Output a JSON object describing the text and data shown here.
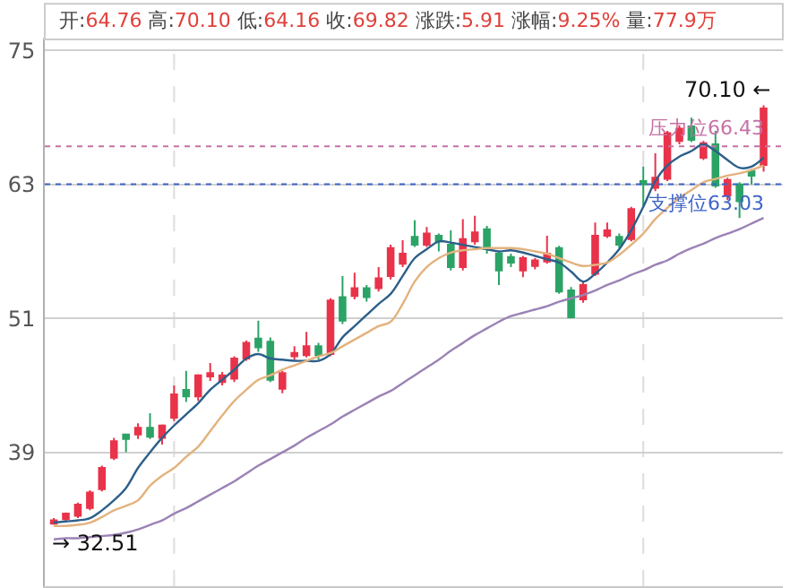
{
  "chart_data": {
    "type": "candlestick",
    "categories": [
      null,
      null,
      null,
      null,
      null,
      null,
      null,
      null,
      null,
      null,
      null,
      null,
      null,
      null,
      null,
      null,
      null,
      null,
      null,
      null,
      null,
      null,
      null,
      null,
      null,
      null,
      null,
      null,
      null,
      null,
      null,
      null,
      null,
      null,
      null,
      null,
      null,
      null,
      null,
      null,
      null,
      null,
      null,
      null,
      null,
      null,
      null,
      null,
      null,
      null,
      null,
      null,
      null,
      null,
      null,
      null,
      null,
      null,
      null,
      null
    ],
    "ohlc": [
      [
        32.6,
        33.1,
        32.51,
        32.9
      ],
      [
        33.0,
        33.6,
        32.8,
        33.5
      ],
      [
        33.3,
        34.5,
        33.1,
        34.3
      ],
      [
        34.0,
        35.6,
        33.8,
        35.4
      ],
      [
        35.7,
        37.8,
        35.5,
        37.6
      ],
      [
        38.5,
        40.3,
        38.3,
        40.0
      ],
      [
        40.6,
        40.6,
        39.0,
        40.2
      ],
      [
        40.6,
        41.6,
        40.2,
        41.2
      ],
      [
        41.2,
        42.5,
        40.2,
        40.4
      ],
      [
        40.3,
        41.5,
        39.7,
        41.4
      ],
      [
        42.1,
        45.0,
        41.8,
        44.2
      ],
      [
        44.6,
        46.3,
        43.5,
        44.0
      ],
      [
        44.0,
        46.0,
        43.6,
        45.9
      ],
      [
        45.8,
        47.0,
        45.4,
        46.1
      ],
      [
        45.3,
        46.2,
        45.0,
        45.9
      ],
      [
        45.6,
        47.6,
        45.3,
        47.4
      ],
      [
        47.4,
        49.0,
        47.2,
        48.8
      ],
      [
        49.2,
        50.8,
        48.0,
        48.4
      ],
      [
        48.9,
        49.3,
        45.3,
        45.5
      ],
      [
        44.7,
        46.3,
        44.3,
        46.1
      ],
      [
        47.6,
        48.5,
        47.3,
        47.9
      ],
      [
        47.7,
        49.8,
        47.5,
        48.5
      ],
      [
        48.5,
        48.8,
        47.3,
        47.7
      ],
      [
        47.8,
        52.8,
        47.6,
        52.6
      ],
      [
        52.9,
        54.8,
        50.5,
        50.8
      ],
      [
        53.0,
        55.1,
        52.7,
        53.7
      ],
      [
        53.7,
        54.0,
        52.5,
        52.9
      ],
      [
        53.7,
        55.6,
        53.4,
        54.6
      ],
      [
        54.8,
        57.6,
        54.5,
        57.3
      ],
      [
        55.9,
        58.0,
        55.6,
        56.8
      ],
      [
        58.3,
        59.8,
        57.4,
        57.6
      ],
      [
        57.6,
        59.2,
        57.4,
        58.6
      ],
      [
        58.4,
        58.6,
        57.0,
        57.9
      ],
      [
        57.6,
        58.9,
        55.3,
        55.6
      ],
      [
        55.6,
        59.9,
        55.3,
        58.1
      ],
      [
        57.9,
        60.2,
        57.6,
        58.7
      ],
      [
        59.0,
        59.3,
        56.8,
        57.2
      ],
      [
        56.8,
        57.0,
        54.0,
        55.3
      ],
      [
        56.5,
        56.8,
        55.6,
        56.0
      ],
      [
        55.3,
        56.6,
        54.7,
        56.4
      ],
      [
        55.7,
        56.4,
        55.4,
        56.2
      ],
      [
        56.1,
        58.4,
        55.9,
        56.8
      ],
      [
        57.3,
        57.5,
        53.2,
        53.4
      ],
      [
        53.5,
        53.8,
        51.0,
        51.1
      ],
      [
        52.7,
        54.3,
        52.4,
        54.0
      ],
      [
        55.0,
        59.6,
        54.8,
        58.4
      ],
      [
        58.4,
        59.6,
        58.2,
        58.9
      ],
      [
        58.3,
        58.6,
        57.3,
        57.6
      ],
      [
        58.1,
        61.0,
        57.9,
        60.8
      ],
      [
        63.3,
        64.6,
        61.0,
        63.0
      ],
      [
        62.7,
        65.8,
        62.4,
        63.6
      ],
      [
        63.5,
        67.8,
        63.3,
        67.6
      ],
      [
        66.9,
        68.3,
        66.6,
        68.0
      ],
      [
        68.2,
        69.0,
        66.8,
        67.0
      ],
      [
        65.4,
        66.9,
        65.2,
        66.7
      ],
      [
        66.6,
        67.8,
        62.7,
        62.9
      ],
      [
        62.0,
        63.6,
        61.6,
        63.4
      ],
      [
        63.0,
        63.2,
        60.0,
        61.5
      ],
      [
        64.2,
        64.4,
        63.0,
        63.8
      ],
      [
        64.76,
        70.1,
        64.16,
        69.82
      ]
    ],
    "colors": [
      "#e8334a",
      "#e8334a",
      "#e8334a",
      "#e8334a",
      "#e8334a",
      "#e8334a",
      "#2ba366",
      "#e8334a",
      "#2ba366",
      "#e8334a",
      "#e8334a",
      "#2ba366",
      "#e8334a",
      "#e8334a",
      "#e8334a",
      "#e8334a",
      "#e8334a",
      "#2ba366",
      "#2ba366",
      "#e8334a",
      "#e8334a",
      "#e8334a",
      "#2ba366",
      "#e8334a",
      "#2ba366",
      "#e8334a",
      "#2ba366",
      "#e8334a",
      "#e8334a",
      "#e8334a",
      "#2ba366",
      "#e8334a",
      "#2ba366",
      "#2ba366",
      "#e8334a",
      "#e8334a",
      "#2ba366",
      "#2ba366",
      "#2ba366",
      "#e8334a",
      "#e8334a",
      "#e8334a",
      "#2ba366",
      "#2ba366",
      "#e8334a",
      "#e8334a",
      "#e8334a",
      "#2ba366",
      "#e8334a",
      "#2ba366",
      "#e8334a",
      "#e8334a",
      "#e8334a",
      "#2ba366",
      "#e8334a",
      "#2ba366",
      "#e8334a",
      "#2ba366",
      "#2ba366",
      "#e8334a"
    ],
    "series": [
      {
        "type": "line",
        "color": "#2c5f8a",
        "values": [
          32.7,
          32.8,
          32.9,
          33.1,
          33.8,
          34.7,
          35.8,
          37.6,
          39.0,
          40.3,
          41.4,
          42.4,
          43.4,
          44.6,
          45.5,
          46.4,
          47.4,
          47.8,
          47.4,
          47.3,
          47.2,
          47.2,
          47.2,
          47.8,
          49.3,
          50.3,
          51.3,
          52.3,
          53.2,
          54.8,
          56.4,
          57.2,
          57.9,
          57.8,
          57.6,
          57.4,
          57.2,
          57.0,
          57.1,
          56.9,
          56.6,
          56.3,
          56.0,
          55.2,
          54.3,
          55.0,
          56.0,
          57.2,
          58.9,
          61.0,
          63.3,
          64.7,
          65.5,
          66.0,
          66.6,
          66.0,
          65.2,
          64.5,
          64.6,
          65.4
        ]
      },
      {
        "type": "line",
        "color": "#e3b27d",
        "values": [
          32.4,
          32.4,
          32.5,
          32.7,
          33.2,
          33.8,
          34.2,
          34.7,
          36.0,
          36.9,
          37.6,
          38.6,
          39.5,
          40.9,
          42.3,
          43.6,
          44.6,
          45.5,
          45.9,
          46.4,
          46.8,
          47.2,
          47.6,
          47.9,
          48.5,
          49.1,
          49.7,
          50.3,
          50.7,
          52.3,
          54.3,
          55.6,
          56.4,
          56.9,
          57.1,
          57.2,
          57.3,
          57.3,
          57.3,
          57.2,
          57.0,
          56.8,
          56.4,
          56.0,
          55.7,
          55.8,
          56.0,
          56.7,
          57.6,
          58.6,
          59.9,
          60.9,
          61.8,
          62.5,
          63.2,
          63.5,
          63.8,
          64.0,
          64.3,
          64.7
        ]
      },
      {
        "type": "line",
        "color": "#9b82b5",
        "values": [
          31.2,
          31.3,
          31.3,
          31.4,
          31.5,
          31.6,
          31.8,
          32.1,
          32.5,
          32.9,
          33.5,
          34.0,
          34.6,
          35.2,
          35.8,
          36.4,
          37.1,
          37.8,
          38.4,
          39.0,
          39.6,
          40.3,
          40.9,
          41.5,
          42.2,
          42.8,
          43.4,
          44.0,
          44.5,
          45.2,
          45.9,
          46.6,
          47.3,
          48.1,
          48.8,
          49.5,
          50.1,
          50.7,
          51.2,
          51.5,
          51.8,
          52.1,
          52.5,
          52.8,
          53.1,
          53.5,
          54.0,
          54.4,
          54.9,
          55.3,
          55.8,
          56.2,
          56.8,
          57.3,
          57.7,
          58.2,
          58.6,
          59.0,
          59.5,
          60.0
        ]
      }
    ],
    "ylim": [
      27,
      76
    ],
    "yticks": [
      39,
      51,
      63,
      75
    ],
    "grid": "y",
    "tick_labels": "y",
    "line_style": "solid",
    "ref_lines": [
      {
        "axis": "y",
        "value": 66.43,
        "label": "压力位66.43",
        "color": "#c571a6",
        "line_style": "dotted"
      },
      {
        "axis": "y",
        "value": 63.03,
        "label": "支撑位63.03",
        "color": "#3f64c8",
        "line_style": "dotted"
      }
    ],
    "annotations": [
      "开:64.76 高:70.10 低:64.16 收:69.82 涨跌:5.91 涨幅:9.25% 量:77.9万",
      "70.10 ←",
      "→ 32.51"
    ]
  }
}
